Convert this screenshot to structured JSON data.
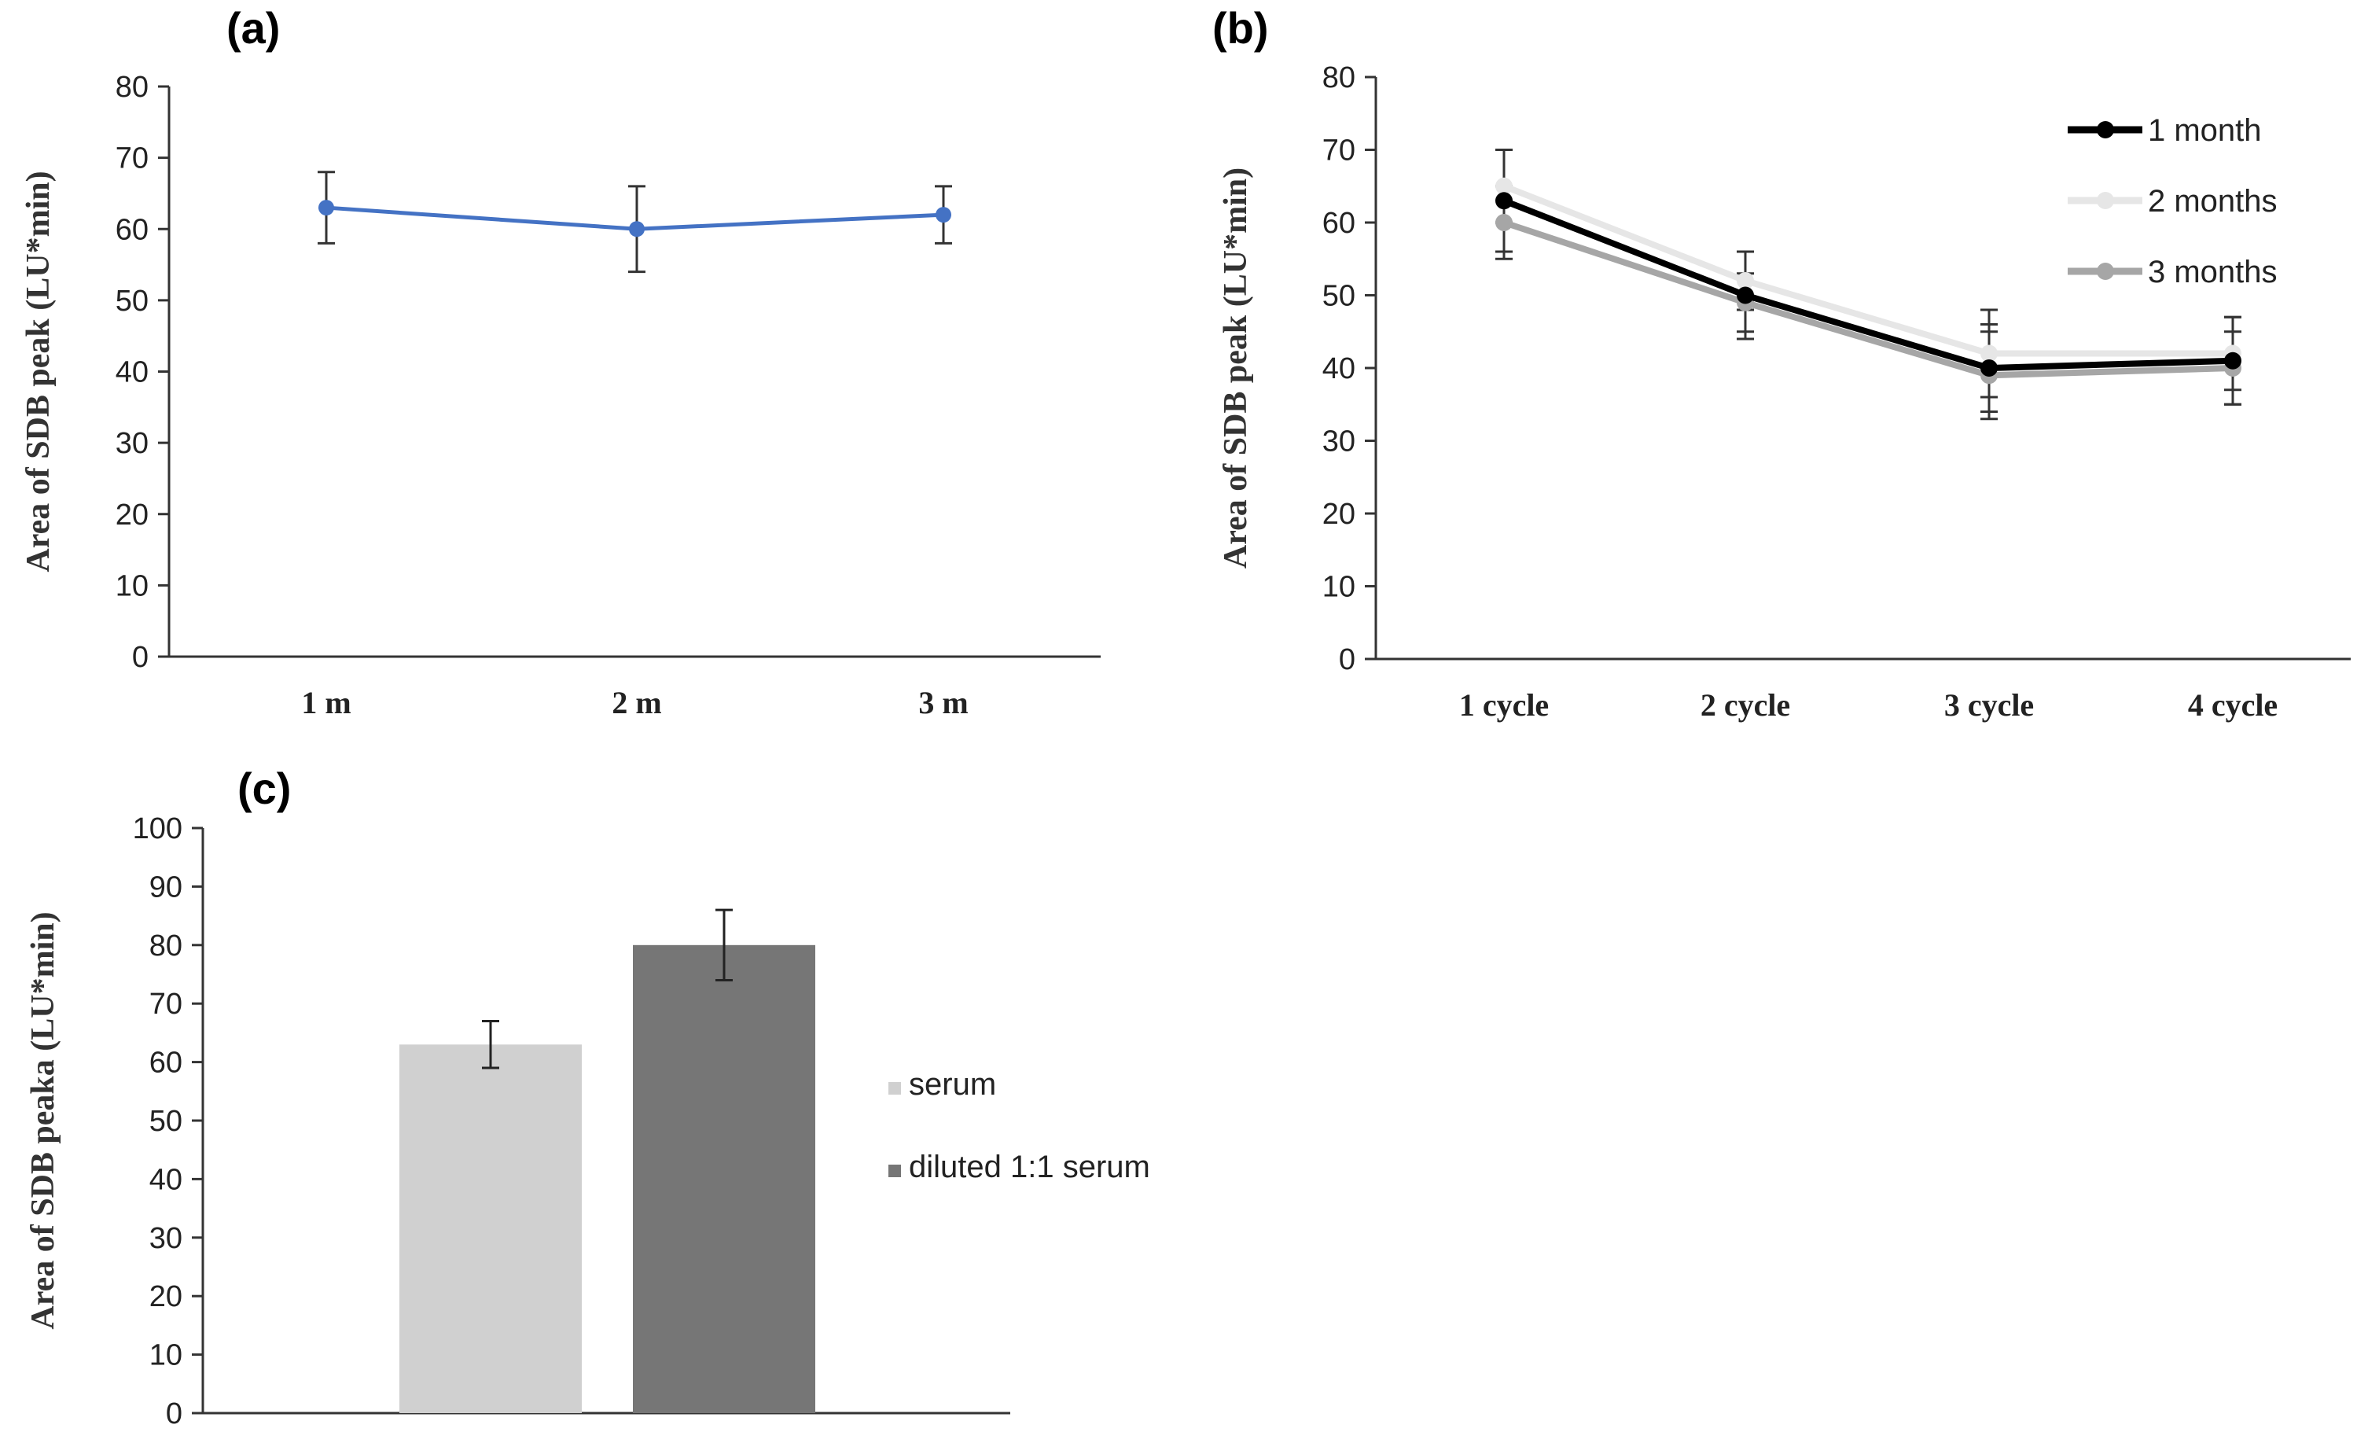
{
  "chart_data": [
    {
      "id": "a",
      "panel_label": "(a)",
      "type": "line",
      "categories": [
        "1 m",
        "2 m",
        "3 m"
      ],
      "series": [
        {
          "values": [
            63,
            60,
            62
          ],
          "errors": [
            5,
            6,
            4
          ],
          "color": "#4472c4"
        }
      ],
      "ylabel": "Area of SDB peak  (LU*min)",
      "ylim": [
        0,
        80
      ],
      "yticks": [
        0,
        10,
        20,
        30,
        40,
        50,
        60,
        70,
        80
      ],
      "grid": false,
      "legend": "none"
    },
    {
      "id": "b",
      "panel_label": "(b)",
      "type": "line",
      "categories": [
        "1 cycle",
        "2 cycle",
        "3 cycle",
        "4 cycle"
      ],
      "series": [
        {
          "name": "1 month",
          "values": [
            63,
            50,
            40,
            41
          ],
          "errors": [
            7,
            6,
            6,
            6
          ],
          "color": "#000000"
        },
        {
          "name": "2 months",
          "values": [
            65,
            52,
            42,
            42
          ],
          "errors": [
            5,
            4,
            6,
            5
          ],
          "color": "#e6e6e6"
        },
        {
          "name": "3 months",
          "values": [
            60,
            49,
            39,
            40
          ],
          "errors": [
            5,
            4,
            6,
            5
          ],
          "color": "#a6a6a6"
        }
      ],
      "ylabel": "Area of SDB peak  (LU*min)",
      "ylim": [
        0,
        80
      ],
      "yticks": [
        0,
        10,
        20,
        30,
        40,
        50,
        60,
        70,
        80
      ],
      "grid": false,
      "legend": "top-right"
    },
    {
      "id": "c",
      "panel_label": "(c)",
      "type": "bar",
      "categories": [
        ""
      ],
      "series": [
        {
          "name": "serum",
          "values": [
            63
          ],
          "errors": [
            4
          ],
          "color": "#d0d0d0"
        },
        {
          "name": "diluted 1:1 serum",
          "values": [
            80
          ],
          "errors": [
            6
          ],
          "color": "#767676"
        }
      ],
      "ylabel": "Area of SDB peaka (LU*min)",
      "ylim": [
        0,
        100
      ],
      "yticks": [
        0,
        10,
        20,
        30,
        40,
        50,
        60,
        70,
        80,
        90,
        100
      ],
      "grid": false,
      "legend": "right"
    }
  ]
}
